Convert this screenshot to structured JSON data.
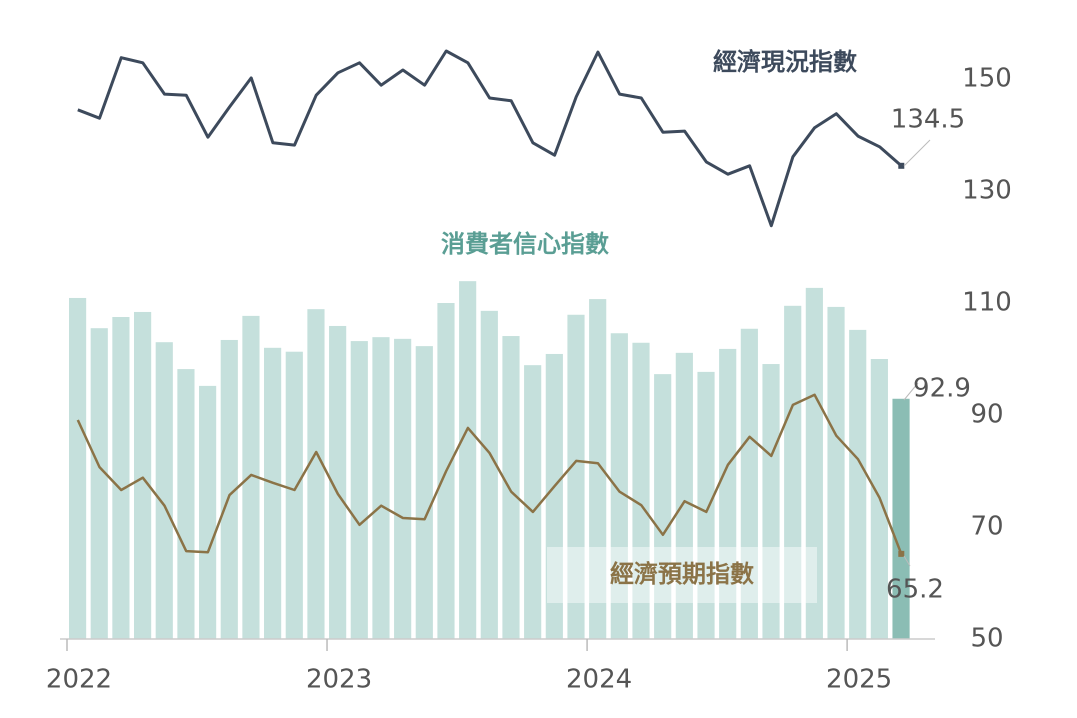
{
  "chart_data": {
    "type": "combo",
    "categories": [
      "2022",
      null,
      null,
      null,
      null,
      null,
      null,
      null,
      null,
      null,
      null,
      null,
      "2023",
      null,
      null,
      null,
      null,
      null,
      null,
      null,
      null,
      null,
      null,
      null,
      "2024",
      null,
      null,
      null,
      null,
      null,
      null,
      null,
      null,
      null,
      null,
      null,
      "2025",
      null,
      null
    ],
    "series": [
      {
        "name": "消費者信心指數",
        "type": "bar",
        "color": "#c5e0dc",
        "last_color": "#8bbdb4",
        "values": [
          110.9,
          105.5,
          107.5,
          108.4,
          103.0,
          98.2,
          95.2,
          103.4,
          107.7,
          102.0,
          101.3,
          108.9,
          105.9,
          103.2,
          103.9,
          103.6,
          102.3,
          110.0,
          113.9,
          108.6,
          104.1,
          98.9,
          100.9,
          107.9,
          110.7,
          104.6,
          102.9,
          97.3,
          101.1,
          97.7,
          101.8,
          105.4,
          99.1,
          109.5,
          112.7,
          109.3,
          105.2,
          100.0,
          92.9
        ]
      },
      {
        "name": "經濟現況指數",
        "type": "line",
        "color": "#3d4a5c",
        "values": [
          144.5,
          143.0,
          153.8,
          152.9,
          147.3,
          147.1,
          139.6,
          145.0,
          150.2,
          138.6,
          138.2,
          147.1,
          151.1,
          152.9,
          148.9,
          151.6,
          148.9,
          155.0,
          152.9,
          146.6,
          146.1,
          138.6,
          136.4,
          146.8,
          154.8,
          147.3,
          146.6,
          140.5,
          140.7,
          135.2,
          133.0,
          134.5,
          123.8,
          136.1,
          141.3,
          143.8,
          139.8,
          137.9,
          134.5
        ]
      },
      {
        "name": "經濟預期指數",
        "type": "line",
        "color": "#8b7347",
        "values": [
          89.1,
          80.7,
          76.6,
          78.8,
          73.8,
          65.7,
          65.5,
          75.7,
          79.3,
          77.9,
          76.6,
          83.4,
          75.9,
          70.4,
          73.8,
          71.6,
          71.4,
          80.0,
          87.7,
          83.2,
          76.3,
          72.7,
          77.3,
          81.8,
          81.4,
          76.3,
          73.9,
          68.6,
          74.6,
          72.7,
          81.1,
          86.1,
          82.7,
          91.8,
          93.6,
          86.3,
          82.1,
          75.2,
          65.2
        ]
      }
    ],
    "ylim": [
      50,
      160
    ],
    "yticks": [
      50,
      70,
      90,
      110,
      130,
      150
    ],
    "grid": false
  }
}
